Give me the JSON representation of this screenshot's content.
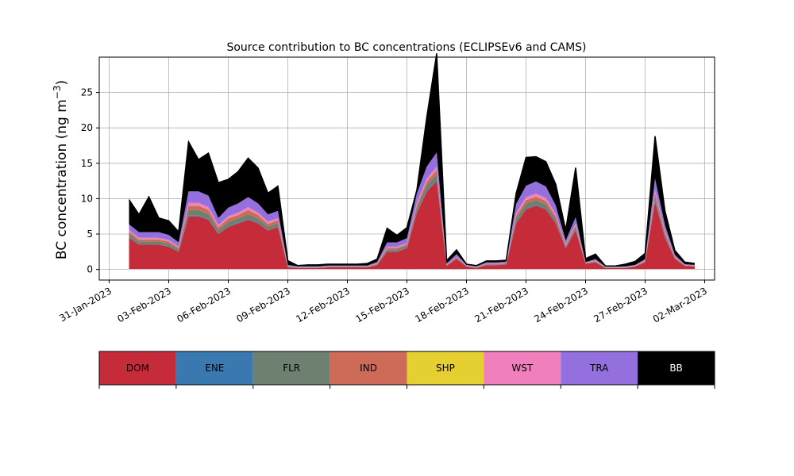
{
  "chart_data": {
    "type": "area",
    "stacked": true,
    "title": "Source contribution to BC concentrations (ECLIPSEv6 and CAMS)",
    "xlabel": "",
    "ylabel": "BC concentration (ng m",
    "ylabel_sup": "−3",
    "ylabel_suffix": ")",
    "ylim": [
      -1.5,
      30.0
    ],
    "xlim": [
      -0.5,
      30.5
    ],
    "yticks": [
      0,
      5,
      10,
      15,
      20,
      25
    ],
    "xticks": [
      0,
      3,
      6,
      9,
      12,
      15,
      18,
      21,
      24,
      27,
      30
    ],
    "xtick_labels": [
      "31-Jan-2023",
      "03-Feb-2023",
      "06-Feb-2023",
      "09-Feb-2023",
      "12-Feb-2023",
      "15-Feb-2023",
      "18-Feb-2023",
      "21-Feb-2023",
      "24-Feb-2023",
      "27-Feb-2023",
      "02-Mar-2023"
    ],
    "grid": true,
    "legend_position": "bottom",
    "x": [
      1.0,
      1.5,
      2.0,
      2.5,
      3.0,
      3.5,
      4.0,
      4.5,
      5.0,
      5.5,
      6.0,
      6.5,
      7.0,
      7.5,
      8.0,
      8.5,
      9.0,
      9.5,
      10.0,
      10.5,
      11.0,
      11.5,
      12.0,
      12.5,
      13.0,
      13.5,
      14.0,
      14.5,
      15.0,
      15.5,
      16.0,
      16.5,
      17.0,
      17.5,
      18.0,
      18.5,
      19.0,
      19.5,
      20.0,
      20.5,
      21.0,
      21.5,
      22.0,
      22.5,
      23.0,
      23.5,
      24.0,
      24.5,
      25.0,
      25.5,
      26.0,
      26.5,
      27.0,
      27.5,
      28.0,
      28.5,
      29.0,
      29.5
    ],
    "series": [
      {
        "name": "DOM",
        "color": "#c62b3a",
        "values": [
          4.5,
          3.5,
          3.5,
          3.5,
          3.2,
          2.5,
          7.5,
          7.5,
          7.0,
          5.0,
          6.0,
          6.5,
          7.0,
          6.5,
          5.5,
          6.0,
          0.3,
          0.2,
          0.2,
          0.2,
          0.3,
          0.3,
          0.3,
          0.3,
          0.3,
          0.6,
          2.5,
          2.5,
          3.0,
          8.0,
          11.0,
          12.5,
          0.5,
          1.5,
          0.4,
          0.2,
          0.6,
          0.6,
          0.7,
          6.5,
          8.5,
          9.0,
          8.5,
          6.5,
          3.0,
          5.5,
          0.8,
          1.0,
          0.2,
          0.2,
          0.2,
          0.4,
          1.0,
          9.5,
          4.5,
          1.5,
          0.5,
          0.4
        ]
      },
      {
        "name": "ENE",
        "color": "#3a78b0",
        "values": [
          0.05,
          0.05,
          0.05,
          0.05,
          0.05,
          0.05,
          0.1,
          0.1,
          0.1,
          0.05,
          0.1,
          0.1,
          0.1,
          0.1,
          0.05,
          0.05,
          0.01,
          0.01,
          0.01,
          0.01,
          0.01,
          0.01,
          0.01,
          0.01,
          0.01,
          0.01,
          0.05,
          0.05,
          0.05,
          0.1,
          0.1,
          0.1,
          0.01,
          0.01,
          0.01,
          0.01,
          0.01,
          0.01,
          0.01,
          0.1,
          0.1,
          0.1,
          0.1,
          0.1,
          0.05,
          0.05,
          0.01,
          0.01,
          0.01,
          0.01,
          0.01,
          0.01,
          0.01,
          0.1,
          0.05,
          0.01,
          0.01,
          0.01
        ]
      },
      {
        "name": "FLR",
        "color": "#6e8070",
        "values": [
          0.5,
          0.4,
          0.4,
          0.4,
          0.4,
          0.3,
          0.8,
          0.8,
          0.7,
          0.5,
          0.6,
          0.6,
          0.7,
          0.6,
          0.5,
          0.5,
          0.05,
          0.05,
          0.05,
          0.05,
          0.05,
          0.05,
          0.05,
          0.05,
          0.05,
          0.1,
          0.3,
          0.3,
          0.3,
          0.6,
          0.8,
          0.9,
          0.05,
          0.1,
          0.05,
          0.05,
          0.1,
          0.1,
          0.1,
          0.6,
          0.7,
          0.7,
          0.6,
          0.5,
          0.2,
          0.4,
          0.05,
          0.1,
          0.05,
          0.05,
          0.05,
          0.05,
          0.1,
          0.7,
          0.4,
          0.1,
          0.05,
          0.05
        ]
      },
      {
        "name": "IND",
        "color": "#cd6a58",
        "values": [
          0.3,
          0.3,
          0.3,
          0.3,
          0.3,
          0.2,
          0.6,
          0.6,
          0.6,
          0.4,
          0.5,
          0.5,
          0.6,
          0.5,
          0.4,
          0.4,
          0.05,
          0.05,
          0.05,
          0.05,
          0.05,
          0.05,
          0.05,
          0.05,
          0.05,
          0.1,
          0.2,
          0.2,
          0.2,
          0.4,
          0.5,
          0.6,
          0.05,
          0.1,
          0.05,
          0.05,
          0.05,
          0.05,
          0.05,
          0.4,
          0.5,
          0.5,
          0.5,
          0.4,
          0.2,
          0.3,
          0.05,
          0.1,
          0.05,
          0.05,
          0.05,
          0.05,
          0.1,
          0.5,
          0.3,
          0.1,
          0.05,
          0.05
        ]
      },
      {
        "name": "SHP",
        "color": "#e6cf30",
        "values": [
          0.02,
          0.02,
          0.02,
          0.02,
          0.02,
          0.02,
          0.03,
          0.03,
          0.03,
          0.02,
          0.03,
          0.03,
          0.03,
          0.03,
          0.02,
          0.02,
          0.01,
          0.01,
          0.01,
          0.01,
          0.01,
          0.01,
          0.01,
          0.01,
          0.01,
          0.01,
          0.02,
          0.02,
          0.02,
          0.03,
          0.03,
          0.03,
          0.01,
          0.01,
          0.01,
          0.01,
          0.01,
          0.01,
          0.01,
          0.03,
          0.03,
          0.03,
          0.03,
          0.03,
          0.02,
          0.02,
          0.01,
          0.01,
          0.01,
          0.01,
          0.01,
          0.01,
          0.01,
          0.03,
          0.02,
          0.01,
          0.01,
          0.01
        ]
      },
      {
        "name": "WST",
        "color": "#f07fbd",
        "values": [
          0.2,
          0.2,
          0.2,
          0.2,
          0.2,
          0.15,
          0.4,
          0.4,
          0.4,
          0.3,
          0.3,
          0.3,
          0.4,
          0.3,
          0.3,
          0.3,
          0.02,
          0.02,
          0.02,
          0.02,
          0.02,
          0.02,
          0.02,
          0.02,
          0.02,
          0.05,
          0.15,
          0.15,
          0.15,
          0.3,
          0.4,
          0.4,
          0.02,
          0.05,
          0.02,
          0.02,
          0.03,
          0.03,
          0.03,
          0.3,
          0.4,
          0.4,
          0.4,
          0.3,
          0.1,
          0.2,
          0.02,
          0.05,
          0.02,
          0.02,
          0.02,
          0.02,
          0.05,
          0.4,
          0.2,
          0.05,
          0.02,
          0.02
        ]
      },
      {
        "name": "TRA",
        "color": "#9370dd",
        "values": [
          0.8,
          0.8,
          0.8,
          0.8,
          0.7,
          0.6,
          1.6,
          1.6,
          1.6,
          1.0,
          1.2,
          1.3,
          1.4,
          1.3,
          1.0,
          1.0,
          0.2,
          0.1,
          0.1,
          0.1,
          0.1,
          0.1,
          0.1,
          0.1,
          0.1,
          0.2,
          0.6,
          0.6,
          0.7,
          1.3,
          1.7,
          2.0,
          0.2,
          0.4,
          0.1,
          0.1,
          0.2,
          0.2,
          0.2,
          1.3,
          1.6,
          1.7,
          1.6,
          1.2,
          0.5,
          0.9,
          0.1,
          0.2,
          0.05,
          0.05,
          0.1,
          0.1,
          0.2,
          1.6,
          0.8,
          0.3,
          0.1,
          0.1
        ]
      },
      {
        "name": "BB",
        "color": "#000000",
        "values": [
          3.5,
          2.5,
          5.0,
          2.0,
          2.0,
          1.5,
          7.0,
          4.5,
          6.0,
          5.0,
          4.0,
          4.5,
          5.5,
          5.0,
          3.0,
          3.5,
          0.6,
          0.1,
          0.2,
          0.2,
          0.2,
          0.2,
          0.2,
          0.2,
          0.3,
          0.4,
          2.0,
          1.0,
          1.5,
          0.5,
          7.0,
          14.0,
          0.4,
          0.6,
          0.1,
          0.1,
          0.2,
          0.2,
          0.2,
          1.5,
          4.0,
          3.5,
          3.5,
          3.0,
          1.5,
          7.0,
          0.5,
          0.7,
          0.1,
          0.1,
          0.3,
          0.5,
          0.8,
          6.0,
          2.0,
          0.6,
          0.3,
          0.2
        ]
      }
    ]
  }
}
